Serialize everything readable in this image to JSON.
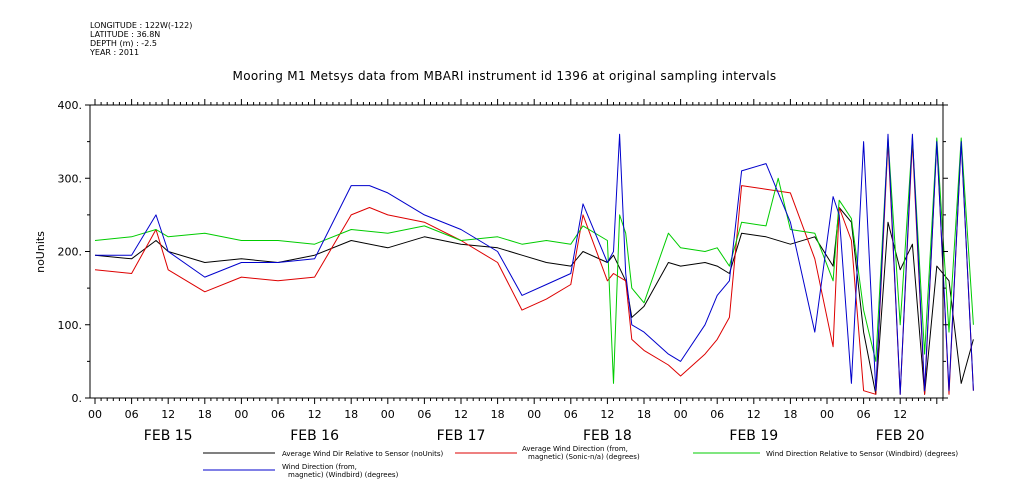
{
  "header": {
    "longitude": "LONGITUDE : 122W(-122)",
    "latitude": "LATITUDE : 36.8N",
    "depth": "DEPTH (m) : -2.5",
    "year": "YEAR : 2011"
  },
  "chart_data": {
    "type": "line",
    "title": "Mooring M1 Metsys data from MBARI instrument id 1396 at original sampling intervals",
    "ylabel": "noUnits",
    "xlabel": "",
    "ylim": [
      0,
      400
    ],
    "y_ticks": [
      "0.",
      "100.",
      "200.",
      "300.",
      "400."
    ],
    "xlim_hours": [
      -2,
      146
    ],
    "x_hour_ticks": [
      "00",
      "06",
      "12",
      "18",
      "00",
      "06",
      "12",
      "18",
      "00",
      "06",
      "12",
      "18",
      "00",
      "06",
      "12",
      "18",
      "00",
      "06",
      "12",
      "18",
      "00",
      "06",
      "12"
    ],
    "day_labels": [
      "FEB 15",
      "FEB 16",
      "FEB 17",
      "FEB 18",
      "FEB 19",
      "FEB 20"
    ],
    "grid": false,
    "legend_position": "bottom",
    "series": [
      {
        "name": "Average Wind Dir Relative to Sensor (noUnits)",
        "color": "#000000",
        "x": [
          0,
          6,
          10,
          12,
          18,
          24,
          30,
          36,
          42,
          48,
          54,
          60,
          66,
          70,
          74,
          78,
          80,
          84,
          85,
          87,
          88,
          90,
          94,
          96,
          100,
          102,
          104,
          106,
          110,
          114,
          118,
          121,
          122,
          124,
          126,
          128,
          130,
          132,
          134,
          136,
          138,
          140,
          142,
          144
        ],
        "values": [
          195,
          190,
          215,
          200,
          185,
          190,
          185,
          195,
          215,
          205,
          220,
          210,
          205,
          195,
          185,
          180,
          200,
          185,
          195,
          160,
          110,
          125,
          185,
          180,
          185,
          180,
          170,
          225,
          220,
          210,
          220,
          180,
          260,
          240,
          90,
          5,
          240,
          175,
          210,
          5,
          180,
          160,
          20,
          80
        ]
      },
      {
        "name": "Average Wind Direction (from, magnetic) (Sonic-n/a) (degrees)",
        "color": "#dd0000",
        "x": [
          0,
          6,
          10,
          12,
          18,
          24,
          30,
          36,
          42,
          45,
          48,
          54,
          60,
          66,
          70,
          74,
          78,
          80,
          84,
          85,
          87,
          88,
          90,
          94,
          96,
          100,
          102,
          104,
          106,
          110,
          114,
          118,
          121,
          122,
          124,
          126,
          128,
          130,
          132,
          134,
          136,
          138,
          140,
          142,
          144
        ],
        "values": [
          175,
          170,
          230,
          175,
          145,
          165,
          160,
          165,
          250,
          260,
          250,
          240,
          215,
          185,
          120,
          135,
          155,
          250,
          160,
          170,
          160,
          80,
          65,
          45,
          30,
          60,
          80,
          110,
          290,
          285,
          280,
          190,
          70,
          260,
          215,
          10,
          5,
          350,
          5,
          350,
          5,
          350,
          5,
          350,
          10
        ]
      },
      {
        "name": "Wind Direction Relative to Sensor (Windbird) (degrees)",
        "color": "#00cc00",
        "x": [
          0,
          6,
          10,
          12,
          18,
          24,
          30,
          36,
          42,
          48,
          54,
          60,
          66,
          70,
          74,
          78,
          80,
          84,
          85,
          86,
          87,
          88,
          90,
          94,
          96,
          100,
          102,
          104,
          106,
          110,
          112,
          114,
          118,
          121,
          122,
          124,
          126,
          128,
          130,
          132,
          134,
          136,
          138,
          140,
          142,
          144
        ],
        "values": [
          215,
          220,
          230,
          220,
          225,
          215,
          215,
          210,
          230,
          225,
          235,
          215,
          220,
          210,
          215,
          210,
          235,
          215,
          20,
          250,
          225,
          150,
          130,
          225,
          205,
          200,
          205,
          180,
          240,
          235,
          300,
          230,
          225,
          160,
          270,
          245,
          120,
          50,
          355,
          100,
          355,
          60,
          355,
          90,
          355,
          100
        ]
      },
      {
        "name": "Wind Direction (from, magnetic) (Windbird) (degrees)",
        "color": "#0000cc",
        "x": [
          0,
          6,
          10,
          12,
          18,
          24,
          30,
          36,
          42,
          45,
          48,
          54,
          60,
          66,
          70,
          74,
          78,
          80,
          84,
          85,
          86,
          87,
          88,
          90,
          94,
          96,
          100,
          102,
          104,
          106,
          110,
          114,
          118,
          121,
          122,
          124,
          126,
          128,
          130,
          132,
          134,
          136,
          138,
          140,
          142,
          144
        ],
        "values": [
          195,
          195,
          250,
          200,
          165,
          185,
          185,
          190,
          290,
          290,
          280,
          250,
          230,
          200,
          140,
          155,
          170,
          265,
          185,
          200,
          360,
          170,
          100,
          90,
          60,
          50,
          100,
          140,
          160,
          310,
          320,
          240,
          90,
          275,
          250,
          20,
          350,
          10,
          360,
          5,
          360,
          10,
          350,
          10,
          350,
          10
        ]
      }
    ]
  }
}
